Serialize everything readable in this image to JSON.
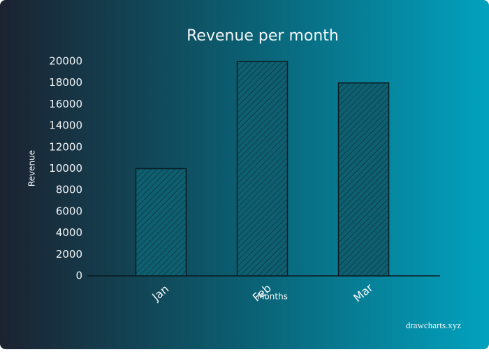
{
  "chart_data": {
    "type": "bar",
    "title": "Revenue per month",
    "x_label": "Months",
    "y_label": "Revenue",
    "categories": [
      "Jan",
      "Feb",
      "Mar"
    ],
    "values": [
      10000,
      20000,
      18000
    ],
    "color": "#0e5f70",
    "ylim": [
      0,
      20000
    ],
    "yticks": [
      0,
      2000,
      4000,
      6000,
      8000,
      10000,
      12000,
      14000,
      16000,
      18000,
      20000
    ],
    "grid": false
  },
  "watermark": "drawcharts.xyz"
}
